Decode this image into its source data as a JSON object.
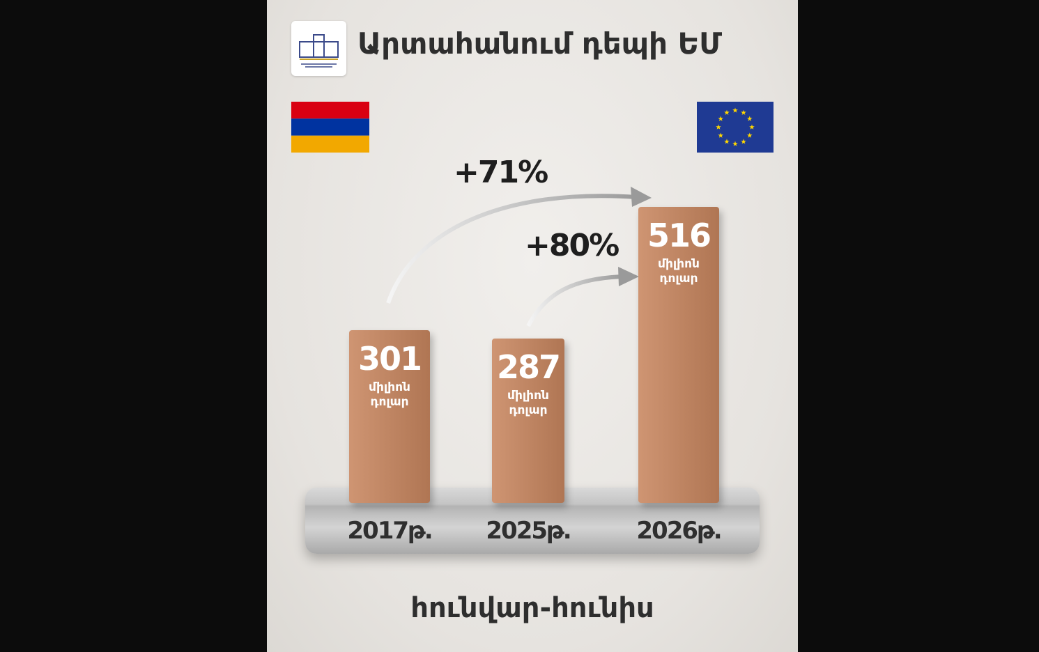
{
  "chart_data": {
    "type": "bar",
    "title": "Արտահանում դեպի ԵՄ",
    "subtitle": "հունվար-հունիս",
    "categories": [
      "2017թ.",
      "2025թ.",
      "2026թ."
    ],
    "values": [
      301,
      287,
      516
    ],
    "unit": "միլիոն դոլար",
    "color": "#c8865f",
    "annotations": [
      "+71%",
      "+80%"
    ]
  }
}
